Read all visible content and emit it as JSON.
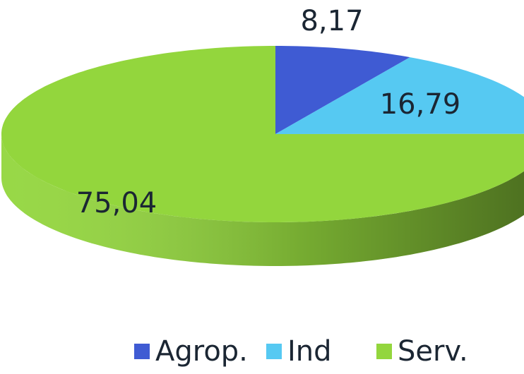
{
  "chart_data": {
    "type": "pie",
    "categories": [
      "Agrop.",
      "Ind",
      "Serv."
    ],
    "values": [
      8.17,
      16.79,
      75.04
    ],
    "value_labels": [
      "8,17",
      "16,79",
      "75,04"
    ],
    "colors": [
      "#3f5bd3",
      "#56c9f2",
      "#93d63d"
    ]
  }
}
